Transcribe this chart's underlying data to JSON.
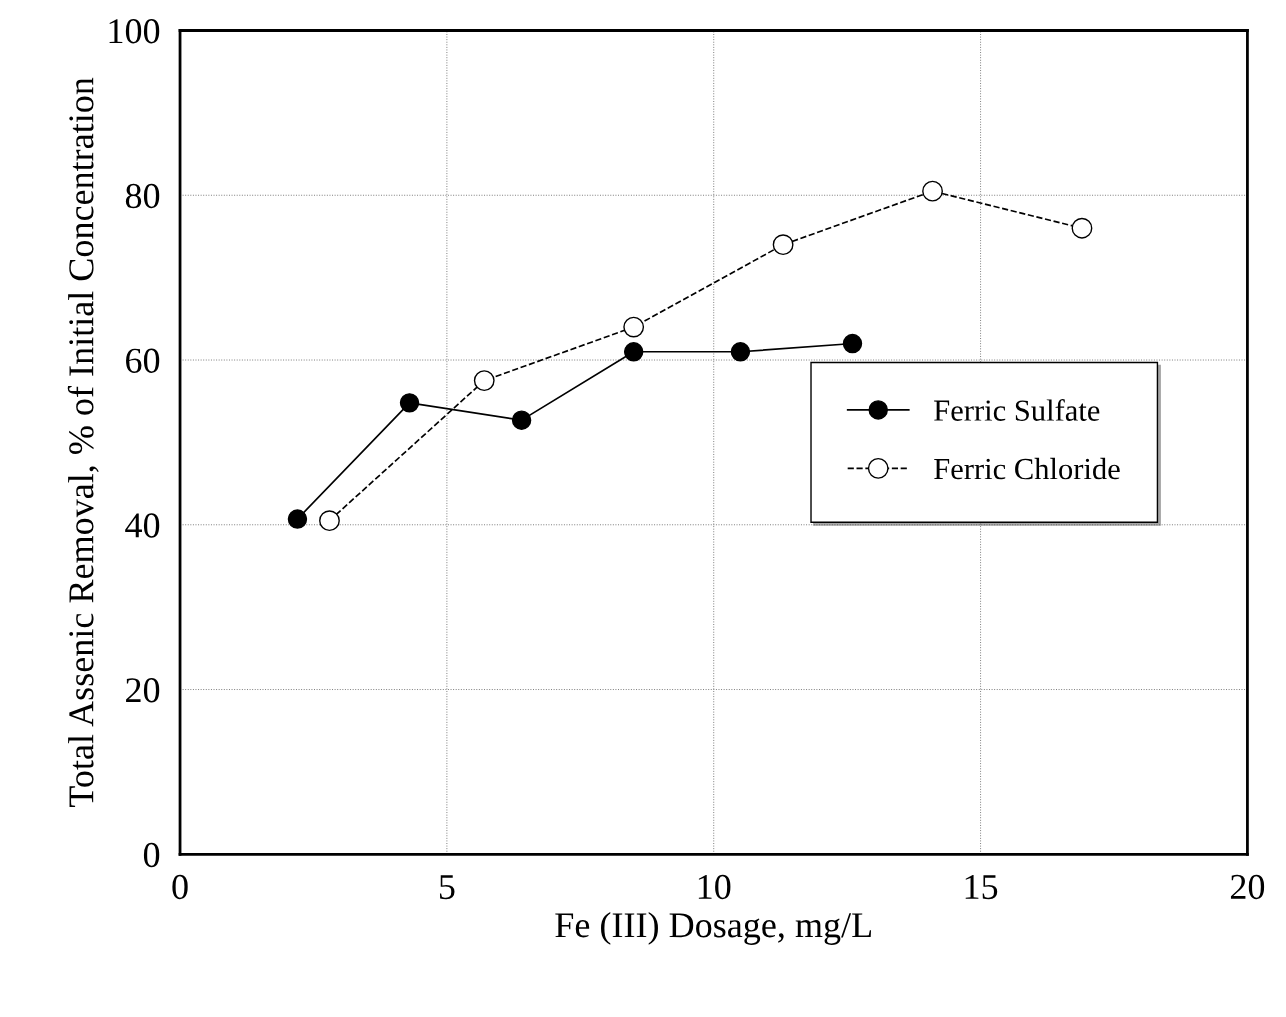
{
  "chart_data": {
    "type": "line",
    "xlabel": "Fe (III) Dosage, mg/L",
    "ylabel": "Total Assenic Removal, % of Initial Concentration",
    "xlim": [
      0,
      20
    ],
    "xticks": [
      0,
      5,
      10,
      15,
      20
    ],
    "ylim": [
      0,
      100
    ],
    "yticks": [
      0,
      20,
      40,
      60,
      80,
      100
    ],
    "grid": true,
    "legend": "right",
    "marker": "circle",
    "series": [
      {
        "name": "Ferric Sulfate",
        "color": "#000000",
        "line_style": "solid",
        "x": [
          2.2,
          4.3,
          6.4,
          8.5,
          10.5,
          12.6
        ],
        "values": [
          40.7,
          54.8,
          52.7,
          61,
          61,
          62
        ]
      },
      {
        "name": "Ferric Chloride",
        "color": "#000000",
        "line_style": "dashed",
        "x": [
          2.8,
          5.7,
          8.5,
          11.3,
          14.1,
          16.9
        ],
        "values": [
          40.5,
          57.5,
          64,
          74,
          80.5,
          76
        ]
      }
    ]
  }
}
